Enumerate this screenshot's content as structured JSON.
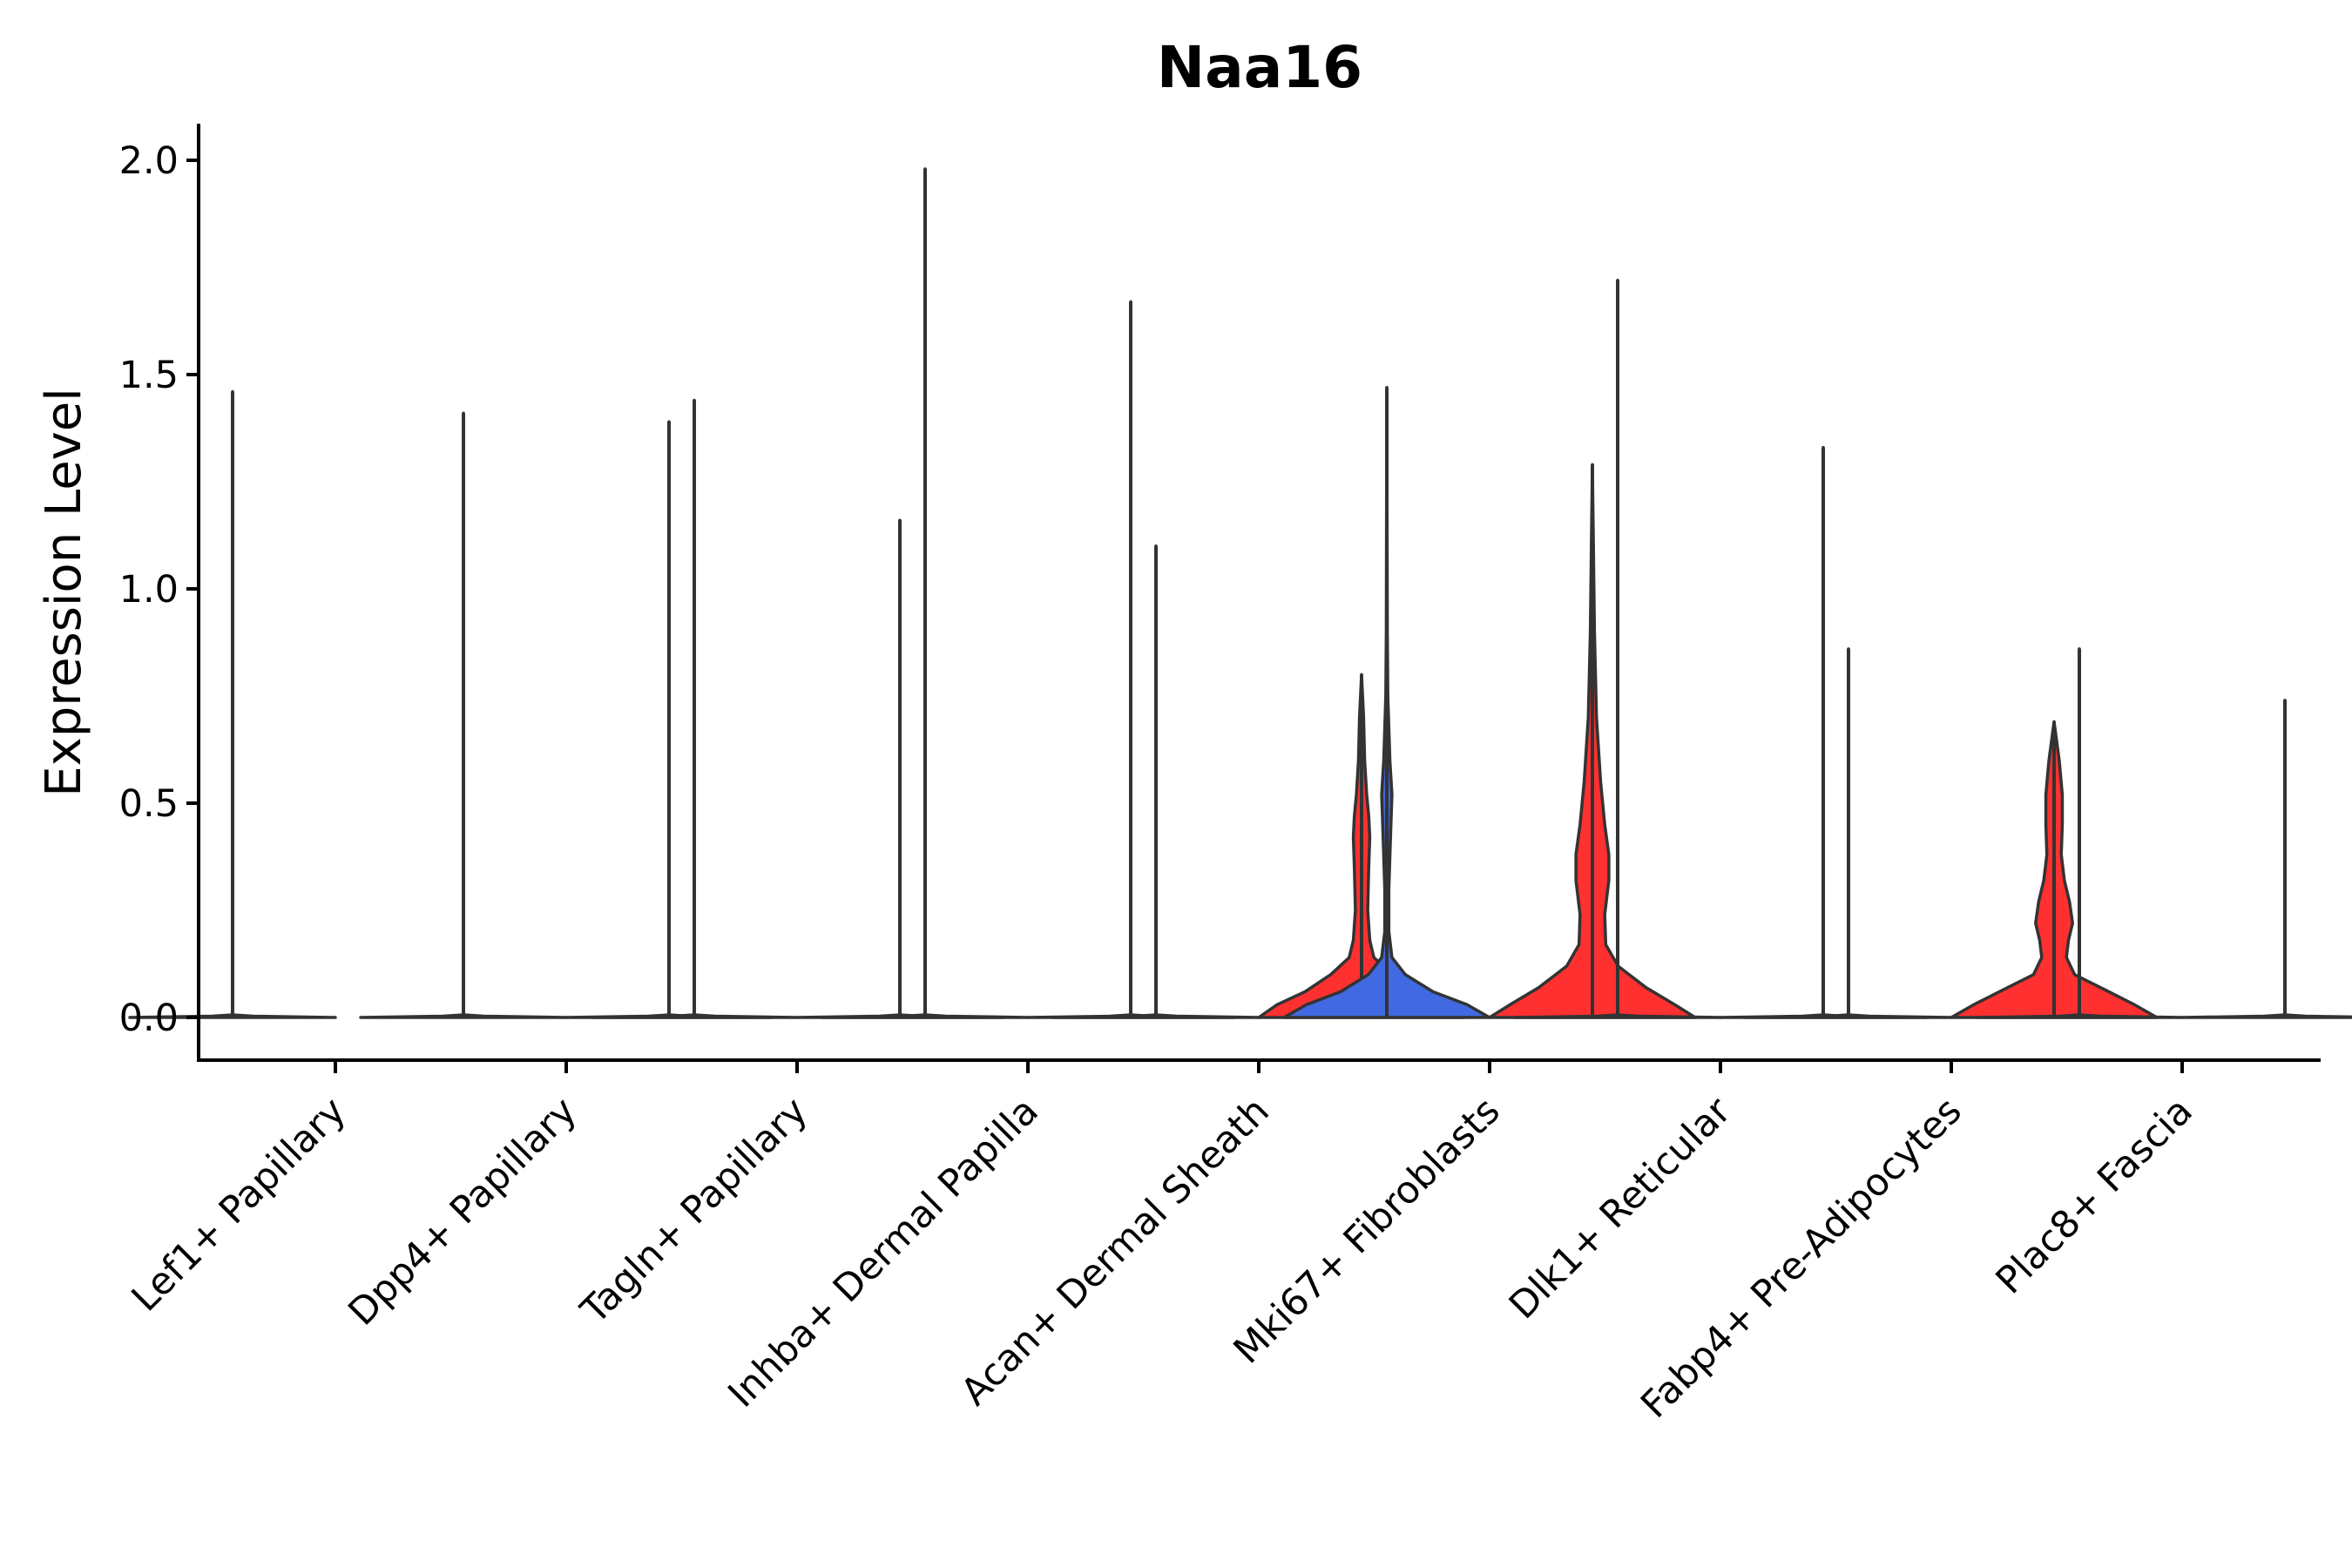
{
  "chart_data": {
    "type": "violin",
    "title": "Naa16",
    "xlabel": "",
    "ylabel": "Expression Level",
    "ylim": [
      -0.1,
      2.08
    ],
    "yticks": [
      "0.0",
      "0.5",
      "1.0",
      "1.5",
      "2.0"
    ],
    "ytick_values": [
      0,
      0.5,
      1.0,
      1.5,
      2.0
    ],
    "categories": [
      "Lef1+ Papillary",
      "Dpp4+ Papillary",
      "Tagln+ Papillary",
      "Inhba+ Dermal Papilla",
      "Acan+ Dermal Sheath",
      "Mki67+ Fibroblasts",
      "Dlk1+ Reticular",
      "Fabp4+ Pre-Adipocytes",
      "Plac8+ Fascia"
    ],
    "groups": [
      "group1",
      "group2"
    ],
    "colors": {
      "none": "#4169E1",
      "group2": "#FF3030",
      "line": "#333333"
    },
    "violins": [
      {
        "category": 0,
        "side": "left",
        "max": 1.46,
        "fill": "none",
        "shape": [
          [
            0,
            1
          ]
        ]
      },
      {
        "category": 1,
        "side": "left",
        "max": 1.41,
        "fill": "none",
        "shape": [
          [
            0,
            1
          ]
        ]
      },
      {
        "category": 1,
        "side": "right",
        "max": 1.39,
        "fill": "none",
        "shape": [
          [
            0,
            1
          ]
        ]
      },
      {
        "category": 2,
        "side": "left",
        "max": 1.44,
        "fill": "none",
        "shape": [
          [
            0,
            1
          ]
        ]
      },
      {
        "category": 2,
        "side": "right",
        "max": 1.16,
        "fill": "none",
        "shape": [
          [
            0,
            1
          ]
        ]
      },
      {
        "category": 3,
        "side": "left",
        "max": 1.98,
        "fill": "none",
        "shape": [
          [
            0,
            1
          ]
        ]
      },
      {
        "category": 3,
        "side": "right",
        "max": 1.67,
        "fill": "none",
        "shape": [
          [
            0,
            1
          ]
        ]
      },
      {
        "category": 4,
        "side": "left",
        "max": 1.1,
        "fill": "none",
        "shape": [
          [
            0,
            1
          ]
        ]
      },
      {
        "category": 4,
        "side": "right",
        "max": 0.8,
        "fill": "group2",
        "shape": [
          [
            0,
            1
          ],
          [
            0.03,
            0.82
          ],
          [
            0.06,
            0.55
          ],
          [
            0.1,
            0.3
          ],
          [
            0.14,
            0.12
          ],
          [
            0.18,
            0.08
          ],
          [
            0.25,
            0.06
          ],
          [
            0.35,
            0.07
          ],
          [
            0.42,
            0.08
          ],
          [
            0.47,
            0.07
          ],
          [
            0.52,
            0.05
          ],
          [
            0.6,
            0.03
          ],
          [
            0.7,
            0.02
          ],
          [
            0.8,
            0
          ]
        ]
      },
      {
        "category": 5,
        "side": "left",
        "max": 1.47,
        "fill": "blue",
        "shape": [
          [
            0,
            1
          ],
          [
            0.03,
            0.78
          ],
          [
            0.06,
            0.45
          ],
          [
            0.1,
            0.18
          ],
          [
            0.14,
            0.05
          ],
          [
            0.2,
            0.02
          ],
          [
            0.3,
            0.02
          ],
          [
            0.45,
            0.04
          ],
          [
            0.52,
            0.05
          ],
          [
            0.6,
            0.03
          ],
          [
            0.75,
            0.01
          ],
          [
            0.9,
            0.005
          ],
          [
            1.47,
            0
          ]
        ]
      },
      {
        "category": 5,
        "side": "right",
        "max": 1.29,
        "fill": "group2",
        "shape": [
          [
            0,
            1
          ],
          [
            0.03,
            0.8
          ],
          [
            0.07,
            0.52
          ],
          [
            0.12,
            0.25
          ],
          [
            0.17,
            0.13
          ],
          [
            0.24,
            0.12
          ],
          [
            0.32,
            0.16
          ],
          [
            0.38,
            0.16
          ],
          [
            0.45,
            0.12
          ],
          [
            0.55,
            0.08
          ],
          [
            0.7,
            0.04
          ],
          [
            0.9,
            0.02
          ],
          [
            1.1,
            0.01
          ],
          [
            1.29,
            0
          ]
        ]
      },
      {
        "category": 6,
        "side": "left",
        "max": 1.72,
        "fill": "none",
        "shape": [
          [
            0,
            1
          ]
        ]
      },
      {
        "category": 6,
        "side": "right",
        "max": 1.33,
        "fill": "none",
        "shape": [
          [
            0,
            1
          ]
        ]
      },
      {
        "category": 7,
        "side": "left",
        "max": 0.86,
        "fill": "none",
        "shape": [
          [
            0,
            1
          ]
        ]
      },
      {
        "category": 7,
        "side": "right",
        "max": 0.69,
        "fill": "group2",
        "shape": [
          [
            0,
            1
          ],
          [
            0.03,
            0.78
          ],
          [
            0.07,
            0.45
          ],
          [
            0.1,
            0.2
          ],
          [
            0.14,
            0.12
          ],
          [
            0.18,
            0.14
          ],
          [
            0.22,
            0.18
          ],
          [
            0.27,
            0.15
          ],
          [
            0.32,
            0.1
          ],
          [
            0.38,
            0.07
          ],
          [
            0.45,
            0.08
          ],
          [
            0.52,
            0.08
          ],
          [
            0.6,
            0.05
          ],
          [
            0.69,
            0
          ]
        ]
      },
      {
        "category": 8,
        "side": "left",
        "max": 0.86,
        "fill": "none",
        "shape": [
          [
            0,
            1
          ]
        ]
      },
      {
        "category": 8,
        "side": "right",
        "max": 0.74,
        "fill": "none",
        "shape": [
          [
            0,
            1
          ]
        ]
      }
    ]
  }
}
